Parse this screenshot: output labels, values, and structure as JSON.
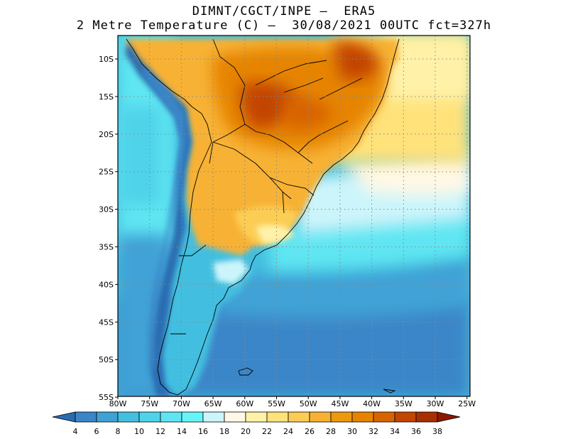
{
  "header": {
    "line1": "DIMNT/CGCT/INPE –  ERA5",
    "line2": "2 Metre Temperature (C) –  30/08/2021 00UTC fct=327h"
  },
  "axes": {
    "lat_labels": [
      "10S",
      "15S",
      "20S",
      "25S",
      "30S",
      "35S",
      "40S",
      "45S",
      "50S",
      "55S"
    ],
    "lon_labels": [
      "80W",
      "75W",
      "70W",
      "65W",
      "60W",
      "55W",
      "50W",
      "45W",
      "40W",
      "35W",
      "30W",
      "25W"
    ]
  },
  "colorbar": {
    "levels": [
      "4",
      "6",
      "8",
      "10",
      "12",
      "14",
      "16",
      "18",
      "20",
      "22",
      "24",
      "26",
      "28",
      "30",
      "32",
      "34",
      "36",
      "38"
    ],
    "colors": [
      "#2b6cb0",
      "#3a86c8",
      "#3fa2d6",
      "#43bfe0",
      "#4fd3ea",
      "#5fe6f2",
      "#66f5f7",
      "#ccf5fb",
      "#fff8e6",
      "#fff2a8",
      "#ffe27a",
      "#fccd55",
      "#f7b234",
      "#ee9811",
      "#e68400",
      "#d86400",
      "#c24500",
      "#a83000",
      "#8a1800"
    ]
  },
  "colors": {
    "coast": "#000000",
    "grid": "#888888"
  }
}
